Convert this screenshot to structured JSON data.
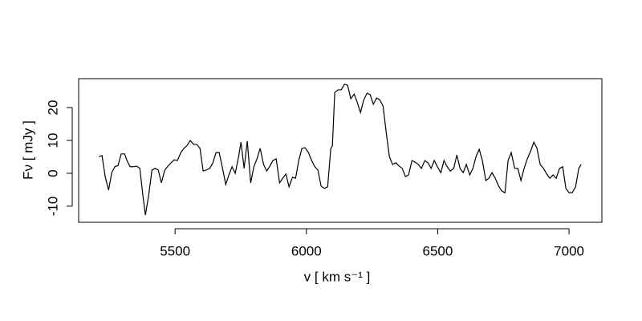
{
  "chart_data": {
    "type": "line",
    "xlabel": "v [ km s⁻¹ ]",
    "ylabel": "Fν [ mJy ]",
    "xlim": [
      5133,
      7125
    ],
    "ylim": [
      -14.9,
      28.8
    ],
    "xticks": [
      5500,
      6000,
      6500,
      7000
    ],
    "yticks": [
      -10,
      0,
      10,
      20
    ],
    "color": "#000000",
    "x": [
      5210,
      5222,
      5234,
      5247,
      5259,
      5271,
      5283,
      5295,
      5308,
      5317,
      5329,
      5341,
      5354,
      5366,
      5378,
      5387,
      5399,
      5412,
      5424,
      5436,
      5448,
      5461,
      5473,
      5485,
      5497,
      5509,
      5522,
      5534,
      5546,
      5558,
      5571,
      5583,
      5595,
      5607,
      5619,
      5632,
      5644,
      5656,
      5668,
      5681,
      5693,
      5705,
      5717,
      5729,
      5742,
      5751,
      5763,
      5775,
      5788,
      5800,
      5812,
      5824,
      5837,
      5849,
      5861,
      5873,
      5885,
      5898,
      5910,
      5922,
      5934,
      5947,
      5959,
      5971,
      5983,
      5995,
      6008,
      6020,
      6032,
      6044,
      6056,
      6069,
      6081,
      6093,
      6099,
      6108,
      6121,
      6133,
      6145,
      6157,
      6169,
      6182,
      6194,
      6206,
      6218,
      6231,
      6243,
      6255,
      6267,
      6279,
      6292,
      6304,
      6316,
      6328,
      6341,
      6353,
      6365,
      6377,
      6389,
      6402,
      6414,
      6426,
      6438,
      6451,
      6463,
      6475,
      6487,
      6499,
      6512,
      6524,
      6536,
      6548,
      6561,
      6573,
      6585,
      6597,
      6609,
      6622,
      6634,
      6646,
      6658,
      6670,
      6683,
      6695,
      6707,
      6719,
      6732,
      6744,
      6756,
      6768,
      6780,
      6793,
      6805,
      6817,
      6829,
      6841,
      6854,
      6866,
      6878,
      6890,
      6903,
      6915,
      6927,
      6939,
      6951,
      6964,
      6976,
      6988,
      7000,
      7012,
      7025,
      7037,
      7046
    ],
    "values": [
      5.1,
      5.4,
      -1,
      -5.1,
      0.2,
      2,
      2.4,
      5.9,
      5.9,
      3.9,
      2,
      2,
      2.2,
      1.5,
      -7,
      -12.7,
      -7,
      1,
      1.5,
      1,
      -2.9,
      1,
      2.2,
      3.2,
      4.1,
      3.9,
      6.3,
      7.6,
      8.5,
      10,
      8.8,
      8.8,
      7.6,
      0.7,
      1,
      1.5,
      3.2,
      6.3,
      6.3,
      1.5,
      -3.4,
      -0.5,
      2,
      0,
      5.1,
      9.5,
      1.5,
      9.8,
      -2.9,
      2,
      4.4,
      7.6,
      2.7,
      0.7,
      2.2,
      3.9,
      4.4,
      -2.9,
      -1.5,
      -0.2,
      -4.1,
      -1.2,
      -1.5,
      3.9,
      7.6,
      7.8,
      6.3,
      3.9,
      2,
      1,
      -3.9,
      -4.6,
      -4.1,
      7.6,
      8.3,
      24.6,
      25.4,
      25.4,
      27.1,
      26.8,
      22.7,
      24.1,
      21.5,
      18.5,
      22.2,
      24.4,
      23.9,
      21,
      22.9,
      22.4,
      20.5,
      12.4,
      5.1,
      2.7,
      3.2,
      2.2,
      1.5,
      -1,
      -0.5,
      3.9,
      3.4,
      2.7,
      1.5,
      3.9,
      3.2,
      1.5,
      3.9,
      2,
      0.2,
      3.9,
      2,
      0.7,
      1.5,
      5.6,
      1.5,
      0.2,
      2.7,
      -0.5,
      1.5,
      5.1,
      7.3,
      3.9,
      -2.2,
      -1.5,
      0.2,
      -1.5,
      -3.9,
      -5.4,
      -5.9,
      3.9,
      6.3,
      1.5,
      1.5,
      -2.2,
      1.5,
      4.4,
      6.8,
      9.5,
      7.6,
      2.7,
      1.5,
      -0.2,
      -1.5,
      -0.5,
      -1.5,
      1.5,
      2,
      -4.6,
      -5.9,
      -5.9,
      -4.1,
      1.5,
      2.7
    ]
  }
}
